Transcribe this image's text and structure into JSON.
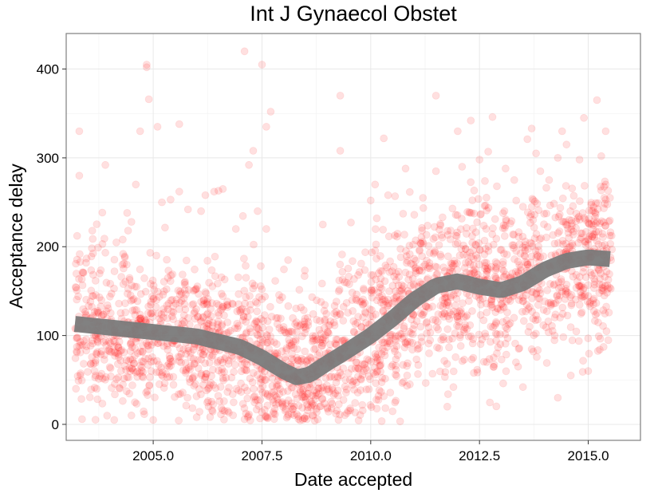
{
  "chart_data": {
    "type": "scatter",
    "title": "Int J Gynaecol Obstet",
    "xlabel": "Date accepted",
    "ylabel": "Acceptance delay",
    "xlim": [
      2003.0,
      2016.2
    ],
    "ylim": [
      -18,
      440
    ],
    "x_ticks": [
      2005.0,
      2007.5,
      2010.0,
      2012.5,
      2015.0
    ],
    "x_tick_labels": [
      "2005.0",
      "2007.5",
      "2010.0",
      "2012.5",
      "2015.0"
    ],
    "y_ticks": [
      0,
      100,
      200,
      300,
      400
    ],
    "y_tick_labels": [
      "0",
      "100",
      "200",
      "300",
      "400"
    ],
    "grid": true,
    "legend": "none",
    "colors": {
      "points": "#ff0000",
      "smooth": "#7a7a7a",
      "panel_border": "#7f7f7f"
    },
    "point_opacity": 0.12,
    "series": [
      {
        "kind": "points",
        "points": [
          [
            2003.3,
            330
          ],
          [
            2003.3,
            280
          ],
          [
            2003.6,
            218
          ],
          [
            2003.9,
            292
          ],
          [
            2004.3,
            208
          ],
          [
            2004.4,
            238
          ],
          [
            2004.5,
            228
          ],
          [
            2004.6,
            270
          ],
          [
            2004.7,
            330
          ],
          [
            2004.85,
            405
          ],
          [
            2004.85,
            402
          ],
          [
            2004.9,
            366
          ],
          [
            2005.1,
            335
          ],
          [
            2005.2,
            250
          ],
          [
            2005.4,
            253
          ],
          [
            2005.6,
            338
          ],
          [
            2005.6,
            262
          ],
          [
            2005.8,
            242
          ],
          [
            2006.1,
            240
          ],
          [
            2006.2,
            258
          ],
          [
            2006.4,
            262
          ],
          [
            2006.5,
            263
          ],
          [
            2006.6,
            265
          ],
          [
            2006.9,
            220
          ],
          [
            2007.1,
            420
          ],
          [
            2007.2,
            292
          ],
          [
            2007.3,
            308
          ],
          [
            2007.5,
            405
          ],
          [
            2007.6,
            335
          ],
          [
            2007.7,
            352
          ],
          [
            2007.4,
            240
          ],
          [
            2007.6,
            220
          ],
          [
            2008.1,
            185
          ],
          [
            2008.5,
            110
          ],
          [
            2008.9,
            225
          ],
          [
            2009.3,
            308
          ],
          [
            2009.3,
            370
          ],
          [
            2009.4,
            160
          ],
          [
            2010.0,
            252
          ],
          [
            2010.1,
            270
          ],
          [
            2010.3,
            322
          ],
          [
            2010.4,
            258
          ],
          [
            2010.8,
            288
          ],
          [
            2011.0,
            236
          ],
          [
            2011.2,
            255
          ],
          [
            2011.5,
            370
          ],
          [
            2011.5,
            285
          ],
          [
            2012.0,
            330
          ],
          [
            2012.1,
            290
          ],
          [
            2012.3,
            342
          ],
          [
            2012.5,
            298
          ],
          [
            2012.7,
            307
          ],
          [
            2012.8,
            346
          ],
          [
            2012.9,
            268
          ],
          [
            2013.1,
            288
          ],
          [
            2013.3,
            275
          ],
          [
            2013.5,
            245
          ],
          [
            2013.6,
            321
          ],
          [
            2013.7,
            333
          ],
          [
            2013.8,
            305
          ],
          [
            2013.9,
            285
          ],
          [
            2014.1,
            275
          ],
          [
            2014.3,
            300
          ],
          [
            2014.4,
            330
          ],
          [
            2014.5,
            315
          ],
          [
            2014.8,
            298
          ],
          [
            2014.9,
            345
          ],
          [
            2015.2,
            365
          ],
          [
            2015.3,
            302
          ],
          [
            2015.4,
            330
          ],
          [
            2015.4,
            270
          ],
          [
            2015.5,
            255
          ],
          [
            2014.3,
            30
          ],
          [
            2013.5,
            42
          ],
          [
            2011.9,
            42
          ],
          [
            2010.9,
            45
          ],
          [
            2009.2,
            12
          ],
          [
            2009.1,
            18
          ],
          [
            2007.6,
            8
          ],
          [
            2006.0,
            8
          ],
          [
            2005.0,
            5
          ],
          [
            2004.5,
            10
          ],
          [
            2003.7,
            40
          ],
          [
            2015.0,
            60
          ],
          [
            2014.6,
            55
          ]
        ]
      },
      {
        "kind": "smooth",
        "name": "",
        "x": [
          2003.2,
          2004.0,
          2005.0,
          2006.0,
          2007.0,
          2007.5,
          2008.0,
          2008.3,
          2008.6,
          2009.0,
          2009.5,
          2010.0,
          2010.5,
          2011.0,
          2011.5,
          2012.0,
          2012.5,
          2013.0,
          2013.5,
          2014.0,
          2014.5,
          2015.0,
          2015.5
        ],
        "y": [
          113,
          109,
          104,
          99,
          87,
          75,
          60,
          53,
          56,
          69,
          84,
          100,
          119,
          140,
          156,
          161,
          155,
          151,
          159,
          174,
          184,
          188,
          186
        ]
      }
    ]
  }
}
